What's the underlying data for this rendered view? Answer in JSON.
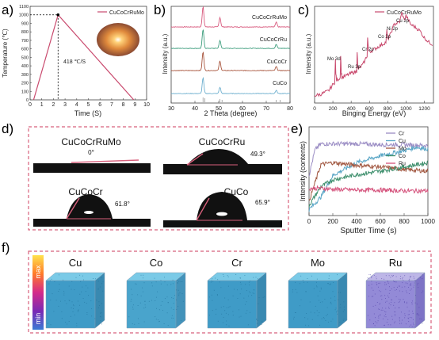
{
  "panels": {
    "a": {
      "letter": "a)",
      "legend": "CuCoCrRuMo",
      "ylabel": "Temperature (℃)",
      "xlabel": "Time (S)",
      "yticks": [
        "0",
        "100",
        "200",
        "300",
        "400",
        "500",
        "600",
        "700",
        "800",
        "900",
        "1000",
        "1100"
      ],
      "xticks": [
        "0",
        "1",
        "2",
        "3",
        "4",
        "5",
        "6",
        "7",
        "8",
        "9",
        "10"
      ],
      "annotation": "418 ℃/S",
      "color": "#c94a6e"
    },
    "b": {
      "letter": "b)",
      "ylabel": "Intensity (a.u.)",
      "xlabel": "2 Theta (degree)",
      "xticks": [
        "30",
        "40",
        "50",
        "60",
        "70",
        "80"
      ],
      "series_labels": [
        "CuCoCrRuMo",
        "CuCoCrRu",
        "CuCoCr",
        "CuCo"
      ]
    },
    "c": {
      "letter": "c)",
      "legend": "CuCoCrRuMo",
      "ylabel": "Intensity (a.u.)",
      "xlabel": "Binging Energy (eV)",
      "xticks": [
        "0",
        "200",
        "400",
        "600",
        "800",
        "1000",
        "1200"
      ],
      "peak_labels": [
        "Mo 3d",
        "Ru 3p",
        "Cr 2p",
        "Co 2p",
        "Ni 2p",
        "Cu 2p"
      ]
    },
    "d": {
      "letter": "d)",
      "samples": [
        {
          "name": "CuCoCrRuMo",
          "angle": "0°"
        },
        {
          "name": "CuCoCrRu",
          "angle": "49.3°"
        },
        {
          "name": "CuCoCr",
          "angle": "61.8°"
        },
        {
          "name": "CuCo",
          "angle": "65.9°"
        }
      ]
    },
    "e": {
      "letter": "e)",
      "ylabel": "Intensity (contents)",
      "xlabel": "Sputter Time (s)",
      "xticks": [
        "0",
        "200",
        "400",
        "600",
        "800",
        "1000"
      ],
      "legend": [
        {
          "name": "Cr",
          "color": "#9a8cc4"
        },
        {
          "name": "Cu",
          "color": "#5aa6c6"
        },
        {
          "name": "Mo",
          "color": "#a0553e"
        },
        {
          "name": "Co",
          "color": "#3a8d6a"
        },
        {
          "name": "Ru",
          "color": "#d4507a"
        }
      ]
    },
    "f": {
      "letter": "f)",
      "colorbar_max": "max",
      "colorbar_min": "min",
      "elements": [
        "Cu",
        "Co",
        "Cr",
        "Mo",
        "Ru"
      ]
    }
  },
  "chart_data": [
    {
      "type": "line",
      "panel": "a",
      "title": "",
      "xlabel": "Time (S)",
      "ylabel": "Temperature (℃)",
      "xlim": [
        0,
        10
      ],
      "ylim": [
        0,
        1100
      ],
      "series": [
        {
          "name": "CuCoCrRuMo",
          "x": [
            0.3,
            2.4,
            8.9
          ],
          "y": [
            0,
            1000,
            0
          ]
        }
      ]
    },
    {
      "type": "line",
      "panel": "b",
      "xlabel": "2 Theta (degree)",
      "ylabel": "Intensity (a.u.)",
      "xlim": [
        30,
        80
      ],
      "peaks_2theta": [
        43.4,
        50.5,
        74.2
      ],
      "series": [
        {
          "name": "CuCoCrRuMo",
          "color": "#d85a7e"
        },
        {
          "name": "CuCoCrRu",
          "color": "#3f9e7e"
        },
        {
          "name": "CuCoCr",
          "color": "#a8553d"
        },
        {
          "name": "CuCo",
          "color": "#6fb0cf"
        }
      ]
    },
    {
      "type": "line",
      "panel": "c",
      "xlabel": "Binging Energy (eV)",
      "ylabel": "Intensity (a.u.)",
      "xlim": [
        0,
        1300
      ],
      "series": [
        {
          "name": "CuCoCrRuMo",
          "x": [
            0,
            60,
            150,
            220,
            228,
            232,
            240,
            280,
            285,
            292,
            300,
            400,
            460,
            465,
            472,
            480,
            530,
            575,
            580,
            590,
            620,
            700,
            780,
            790,
            800,
            830,
            870,
            930,
            955,
            980,
            1000,
            1050,
            1100,
            1150,
            1200,
            1250,
            1300
          ],
          "y": [
            0.05,
            0.06,
            0.1,
            0.2,
            0.45,
            0.3,
            0.22,
            0.25,
            0.5,
            0.3,
            0.25,
            0.3,
            0.32,
            0.55,
            0.36,
            0.35,
            0.4,
            0.5,
            0.7,
            0.55,
            0.55,
            0.6,
            0.65,
            0.78,
            0.68,
            0.74,
            0.85,
            0.88,
            0.98,
            0.9,
            0.95,
            0.85,
            0.82,
            0.78,
            0.7,
            0.65,
            0.62
          ]
        }
      ]
    },
    {
      "type": "line",
      "panel": "e",
      "xlabel": "Sputter Time (s)",
      "ylabel": "Intensity (contents)",
      "xlim": [
        0,
        1000
      ],
      "series": [
        {
          "name": "Cr",
          "x": [
            0,
            50,
            100,
            200,
            400,
            600,
            800,
            1000
          ],
          "y": [
            0.45,
            0.75,
            0.82,
            0.82,
            0.82,
            0.81,
            0.81,
            0.8
          ]
        },
        {
          "name": "Cu",
          "x": [
            0,
            100,
            200,
            400,
            600,
            800,
            900,
            1000
          ],
          "y": [
            0.05,
            0.2,
            0.45,
            0.6,
            0.68,
            0.74,
            0.78,
            0.76
          ]
        },
        {
          "name": "Mo",
          "x": [
            0,
            100,
            200,
            400,
            600,
            800,
            1000
          ],
          "y": [
            0.15,
            0.58,
            0.6,
            0.57,
            0.55,
            0.52,
            0.5
          ]
        },
        {
          "name": "Co",
          "x": [
            0,
            100,
            200,
            400,
            600,
            800,
            1000
          ],
          "y": [
            0.1,
            0.32,
            0.4,
            0.46,
            0.5,
            0.55,
            0.6
          ]
        },
        {
          "name": "Ru",
          "x": [
            0,
            100,
            200,
            400,
            600,
            800,
            1000
          ],
          "y": [
            0.3,
            0.3,
            0.29,
            0.28,
            0.28,
            0.27,
            0.27
          ]
        }
      ]
    }
  ]
}
